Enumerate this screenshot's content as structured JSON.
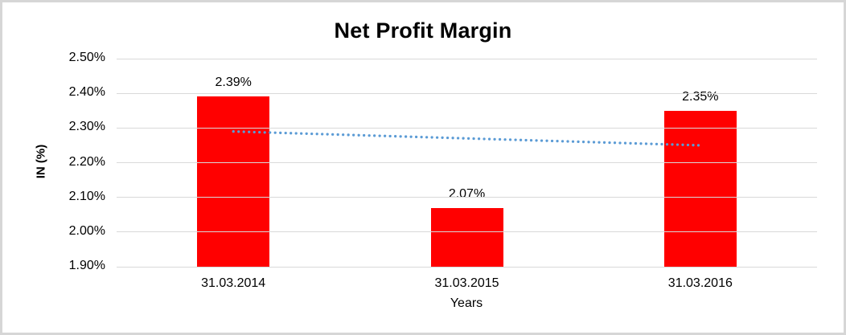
{
  "chart_data": {
    "type": "bar",
    "title": "Net Profit Margin",
    "categories": [
      "31.03.2014",
      "31.03.2015",
      "31.03.2016"
    ],
    "values": [
      2.39,
      2.07,
      2.35
    ],
    "data_labels": [
      "2.39%",
      "2.07%",
      "2.35%"
    ],
    "xlabel": "Years",
    "ylabel": "IN (%)",
    "ylim": [
      1.9,
      2.5
    ],
    "ytick_step": 0.1,
    "ytick_labels": [
      "2.50%",
      "2.40%",
      "2.30%",
      "2.20%",
      "2.10%",
      "2.00%",
      "1.90%"
    ],
    "grid": true,
    "legend": "none",
    "bar_color": "#ff0000",
    "gridline_color": "#d9d9d9",
    "trendline": {
      "type": "linear",
      "start_value": 2.29,
      "end_value": 2.25,
      "color": "#5b9bd5",
      "style": "dotted"
    }
  }
}
